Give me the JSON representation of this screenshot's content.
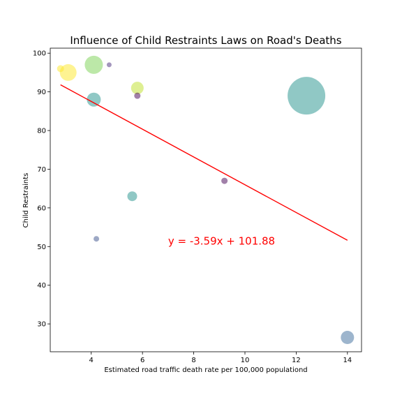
{
  "chart_data": {
    "type": "scatter",
    "title": "Influence of Child Restraints Laws on Road's Deaths",
    "xlabel": "Estimated road traffic death rate per 100,000 populationd",
    "ylabel": "Child Restraints",
    "xlim": [
      2.4,
      14.55
    ],
    "ylim": [
      22.8,
      101.3
    ],
    "xticks": [
      4,
      6,
      8,
      10,
      12,
      14
    ],
    "yticks": [
      30,
      40,
      50,
      60,
      70,
      80,
      90,
      100
    ],
    "grid": false,
    "points": [
      {
        "x": 2.8,
        "y": 96,
        "size": 5,
        "color": "#fde725"
      },
      {
        "x": 3.1,
        "y": 95,
        "size": 12,
        "color": "#fde725"
      },
      {
        "x": 4.1,
        "y": 97,
        "size": 13,
        "color": "#7ad151"
      },
      {
        "x": 4.1,
        "y": 88,
        "size": 10,
        "color": "#21918c"
      },
      {
        "x": 4.2,
        "y": 52,
        "size": 4,
        "color": "#3b528b"
      },
      {
        "x": 4.7,
        "y": 97,
        "size": 3.5,
        "color": "#472d7b"
      },
      {
        "x": 5.6,
        "y": 63,
        "size": 7,
        "color": "#21918c"
      },
      {
        "x": 5.8,
        "y": 91,
        "size": 9,
        "color": "#bddf26"
      },
      {
        "x": 5.8,
        "y": 89,
        "size": 4.5,
        "color": "#440154"
      },
      {
        "x": 9.2,
        "y": 67,
        "size": 4.5,
        "color": "#440154"
      },
      {
        "x": 12.4,
        "y": 89,
        "size": 27,
        "color": "#21918c"
      },
      {
        "x": 14.0,
        "y": 26.5,
        "size": 9.5,
        "color": "#3b6c9b"
      }
    ],
    "point_alpha": 0.5,
    "regression": {
      "slope": -3.59,
      "intercept": 101.88,
      "x_range": [
        2.8,
        14.0
      ],
      "color": "#ff0000",
      "equation_text": "y = -3.59x + 101.88",
      "equation_anchor": {
        "x": 7.0,
        "y": 50.5
      }
    }
  }
}
